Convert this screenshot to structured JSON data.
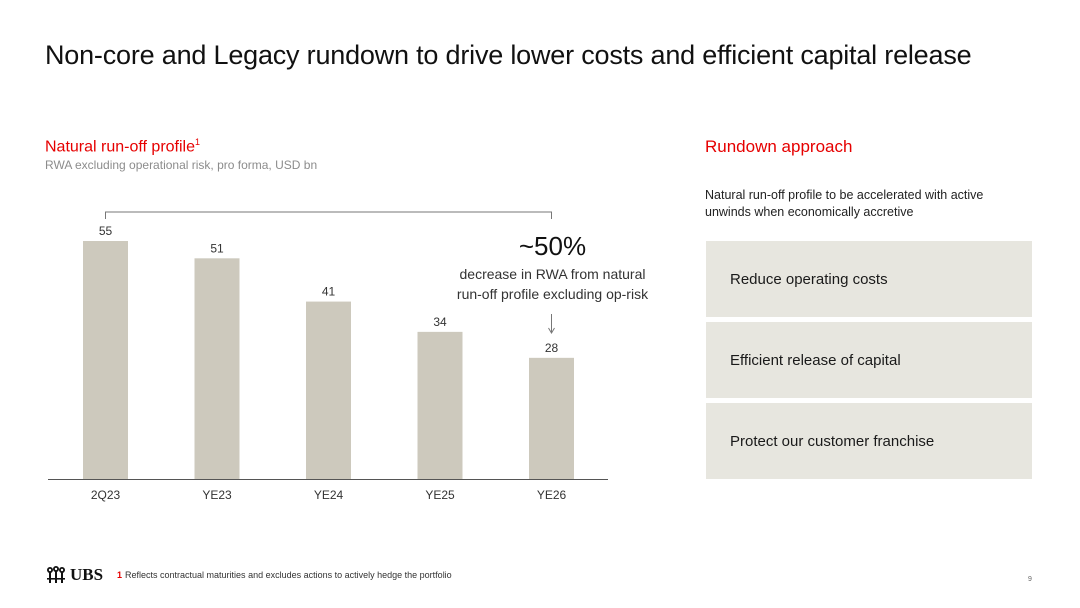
{
  "title": "Non-core and Legacy rundown to drive lower costs and efficient capital release",
  "chart_data": {
    "type": "bar",
    "title": "Natural run-off profile",
    "title_footnote_marker": "1",
    "subtitle": "RWA excluding operational risk, pro forma, USD bn",
    "categories": [
      "2Q23",
      "YE23",
      "YE24",
      "YE25",
      "YE26"
    ],
    "values": [
      55,
      51,
      41,
      34,
      28
    ],
    "ylim": [
      0,
      60
    ],
    "grid": false,
    "legend": "none",
    "bar_color": "#cdc9bd",
    "annotation": {
      "headline": "~50%",
      "text_line1": "decrease in RWA from natural",
      "text_line2": "run-off profile excluding op-risk",
      "bracket_from": "2Q23",
      "bracket_to": "YE26"
    }
  },
  "rundown": {
    "title": "Rundown approach",
    "intro": "Natural run-off profile to be accelerated with active unwinds when economically accretive",
    "items": [
      "Reduce operating costs",
      "Efficient release of capital",
      "Protect our customer franchise"
    ]
  },
  "footer": {
    "logo_text": "UBS",
    "footnote_marker": "1",
    "footnote_text": "Reflects contractual maturities and excludes actions to actively hedge the portfolio",
    "page_number": "9"
  },
  "colors": {
    "accent": "#e60000",
    "bar": "#cdc9bd",
    "box": "#e7e6df"
  }
}
